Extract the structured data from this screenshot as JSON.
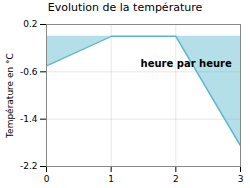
{
  "chart_data": {
    "type": "area",
    "title": "Evolution de la température",
    "y_label": "Température en °C",
    "annotations": [
      "heure par heure"
    ],
    "x": [
      0,
      1,
      2,
      3
    ],
    "values": [
      -0.5,
      0.0,
      0.0,
      -1.85
    ],
    "color": "#5bb8cc",
    "xlim": [
      0,
      3
    ],
    "xticks": [
      0,
      1,
      2,
      3
    ],
    "ylim": [
      -2.2,
      0.2
    ],
    "yticks": [
      0.2,
      -0.6,
      -1.4,
      -2.2
    ],
    "grid": true
  }
}
